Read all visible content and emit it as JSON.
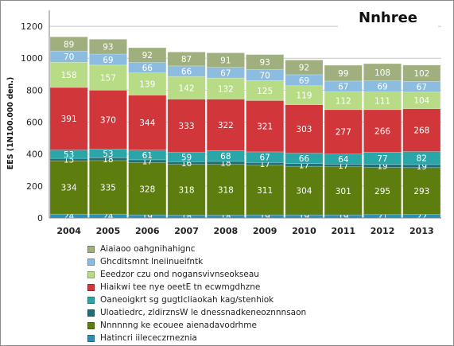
{
  "chart_data": {
    "type": "bar",
    "stacked": true,
    "title": "Nnhree",
    "ylabel": "EES (1N100.000 den.)",
    "xlabel": "",
    "ylim": [
      0,
      1300
    ],
    "yticks": [
      0,
      200,
      400,
      600,
      800,
      1000,
      1200
    ],
    "grid": true,
    "legend_position": "bottom",
    "categories": [
      "2004",
      "2005",
      "2006",
      "2007",
      "2008",
      "2009",
      "2010",
      "2011",
      "2012",
      "2013"
    ],
    "series": [
      {
        "name": "Hatincri iilececzrneznia",
        "color": "#2e8fb5",
        "values": [
          24,
          24,
          19,
          18,
          18,
          19,
          19,
          19,
          21,
          22
        ],
        "labels": [
          "24",
          "24",
          "19",
          "18",
          "18",
          "19",
          "19",
          "19",
          "21",
          "22"
        ]
      },
      {
        "name": "Nnnnnng ke ecouee aienadavodrhme",
        "color": "#5e7d0f",
        "values": [
          334,
          335,
          328,
          318,
          318,
          311,
          304,
          301,
          295,
          293
        ],
        "labels": [
          "334",
          "335",
          "328",
          "318",
          "318",
          "311",
          "304",
          "301",
          "295",
          "293"
        ]
      },
      {
        "name": "Uloatiedrc, zldirznsW le dnessnadkeneoznnnsaon",
        "color": "#1e6f7a",
        "values": [
          15,
          18,
          17,
          16,
          18,
          17,
          17,
          17,
          19,
          19
        ],
        "labels": [
          "15",
          "18",
          "17",
          "16",
          "18",
          "17",
          "17",
          "17",
          "19",
          "19"
        ]
      },
      {
        "name": "Oaneoigkrt sg gugtlcliaokah kag/stenhiok",
        "color": "#2aa6a8",
        "values": [
          53,
          53,
          61,
          59,
          68,
          67,
          66,
          64,
          77,
          82
        ],
        "labels": [
          "53",
          "53",
          "61",
          "59",
          "68",
          "67",
          "66",
          "64",
          "77",
          "82"
        ]
      },
      {
        "name": "Hiaikwi tee nye oeetE tn ecwmgdhzne",
        "color": "#d0363a",
        "values": [
          391,
          370,
          344,
          333,
          322,
          321,
          303,
          277,
          266,
          268
        ],
        "labels": [
          "391",
          "370",
          "344",
          "333",
          "322",
          "321",
          "303",
          "277",
          "266",
          "268"
        ]
      },
      {
        "name": "Eeedzor czu ond nogansvivnseokseau",
        "color": "#b8dc86",
        "values": [
          158,
          157,
          139,
          142,
          132,
          125,
          119,
          112,
          111,
          104
        ],
        "labels": [
          "158",
          "157",
          "139",
          "142",
          "132",
          "125",
          "119",
          "112",
          "111",
          "104"
        ]
      },
      {
        "name": "Ghcditsmnt lneiinueifntk",
        "color": "#8cbde0",
        "values": [
          70,
          69,
          66,
          66,
          67,
          70,
          69,
          67,
          69,
          67
        ],
        "labels": [
          "70",
          "69",
          "66",
          "66",
          "67",
          "70",
          "69",
          "67",
          "69",
          "67"
        ]
      },
      {
        "name": "Aiaiaoo oahgnihahignc",
        "color": "#9fb07e",
        "values": [
          89,
          93,
          92,
          87,
          91,
          93,
          92,
          99,
          108,
          102
        ],
        "labels": [
          "89",
          "93",
          "92",
          "87",
          "91",
          "93",
          "92",
          "99",
          "108",
          "102"
        ]
      }
    ]
  }
}
